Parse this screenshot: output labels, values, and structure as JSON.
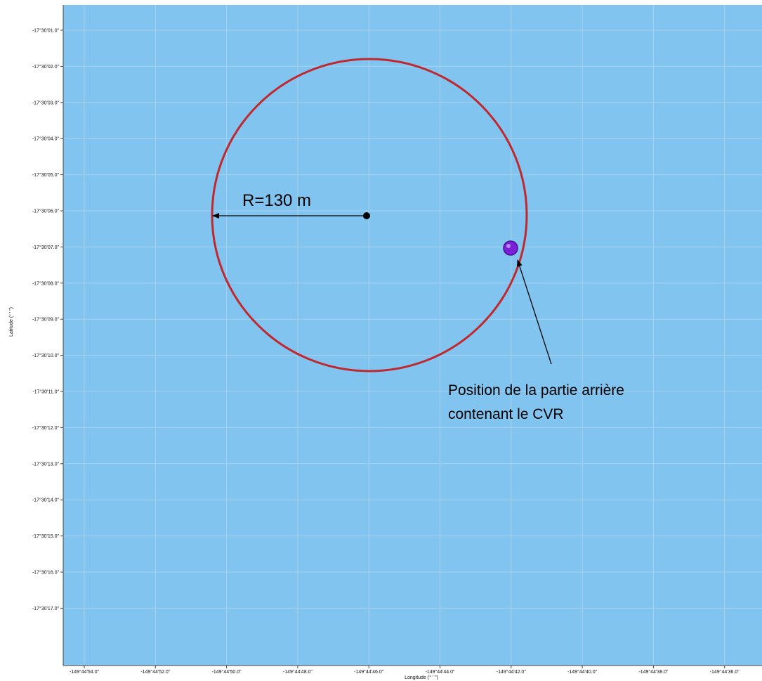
{
  "map": {
    "background_color": "#82c4f0",
    "grid_color": "#a8d0ec",
    "circle_color": "#c0282d",
    "marker_color": "#7c1fd8",
    "center_point_color": "#000000",
    "y_axis_title": "Latitude (° ' \")",
    "x_axis_title": "Longitude (° ' \")",
    "y_ticks": [
      "-17°30'01.0\"",
      "-17°30'02.0\"",
      "-17°30'03.0\"",
      "-17°30'04.0\"",
      "-17°30'05.0\"",
      "-17°30'06.0\"",
      "-17°30'07.0\"",
      "-17°30'08.0\"",
      "-17°30'09.0\"",
      "-17°30'10.0\"",
      "-17°30'11.0\"",
      "-17°30'12.0\"",
      "-17°30'13.0\"",
      "-17°30'14.0\"",
      "-17°30'15.0\"",
      "-17°30'16.0\"",
      "-17°30'17.0\""
    ],
    "x_ticks": [
      "-149°44'54.0\"",
      "-149°44'52.0\"",
      "-149°44'50.0\"",
      "-149°44'48.0\"",
      "-149°44'46.0\"",
      "-149°44'44.0\"",
      "-149°44'42.0\"",
      "-149°44'40.0\"",
      "-149°44'38.0\"",
      "-149°44'36.0\""
    ],
    "radius_label": "R=130 m",
    "annotation_line1": "Position de la partie arrière",
    "annotation_line2": "contenant le CVR"
  }
}
